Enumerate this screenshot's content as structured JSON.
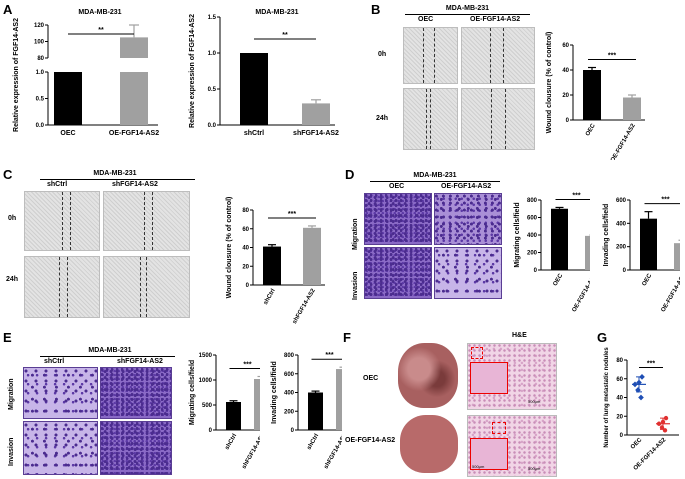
{
  "panels": {
    "A": {
      "label": "A",
      "title": "MDA-MB-231"
    },
    "B": {
      "label": "B",
      "title": "MDA-MB-231",
      "cols": [
        "OEC",
        "OE-FGF14-AS2"
      ],
      "rows": [
        "0h",
        "24h"
      ]
    },
    "C": {
      "label": "C",
      "title": "MDA-MB-231",
      "cols": [
        "shCtrl",
        "shFGF14-AS2"
      ],
      "rows": [
        "0h",
        "24h"
      ]
    },
    "D": {
      "label": "D",
      "title": "MDA-MB-231",
      "cols": [
        "OEC",
        "OE-FGF14-AS2"
      ],
      "rows": [
        "Migration",
        "Invasion"
      ]
    },
    "E": {
      "label": "E",
      "title": "MDA-MB-231",
      "cols": [
        "shCtrl",
        "shFGF14-AS2"
      ],
      "rows": [
        "Migration",
        "Invasion"
      ]
    },
    "F": {
      "label": "F",
      "he_title": "H&E",
      "rows": [
        "OEC",
        "OE-FGF14-AS2"
      ],
      "scale_bar": "500μm"
    },
    "G": {
      "label": "G"
    }
  },
  "chart_data": [
    {
      "id": "A1",
      "type": "bar",
      "title": "MDA-MB-231",
      "categories": [
        "OEC",
        "OE-FGF14-AS2"
      ],
      "values": [
        1,
        105
      ],
      "errors": [
        0,
        15
      ],
      "ylabel": "Relative expression of FGF14-AS2",
      "yticks_lower": [
        "0.0",
        "0.5",
        "1.0"
      ],
      "yticks_upper": [
        "80",
        "100",
        "120"
      ],
      "sig": "**",
      "colors": [
        "#000000",
        "#a0a0a0"
      ]
    },
    {
      "id": "A2",
      "type": "bar",
      "title": "MDA-MB-231",
      "categories": [
        "shCtrl",
        "shFGF14-AS2"
      ],
      "values": [
        1.0,
        0.3
      ],
      "errors": [
        0,
        0.05
      ],
      "ylabel": "Relative expression of FGF14-AS2",
      "ylim": [
        0,
        1.5
      ],
      "yticks": [
        "0.0",
        "0.5",
        "1.0",
        "1.5"
      ],
      "sig": "**",
      "colors": [
        "#000000",
        "#a0a0a0"
      ]
    },
    {
      "id": "B",
      "type": "bar",
      "categories": [
        "OEC",
        "OE-FGF14-AS2"
      ],
      "values": [
        40,
        18
      ],
      "errors": [
        2,
        2
      ],
      "ylabel": "Wound clousure (% of control)",
      "ylim": [
        0,
        60
      ],
      "yticks": [
        "0",
        "20",
        "40",
        "60"
      ],
      "sig": "***",
      "colors": [
        "#000000",
        "#a0a0a0"
      ]
    },
    {
      "id": "C",
      "type": "bar",
      "categories": [
        "shCtrl",
        "shFGF14-AS2"
      ],
      "values": [
        41,
        61
      ],
      "errors": [
        2,
        2
      ],
      "ylabel": "Wound clousure (% of control)",
      "ylim": [
        0,
        80
      ],
      "yticks": [
        "0",
        "20",
        "40",
        "60",
        "80"
      ],
      "sig": "***",
      "colors": [
        "#000000",
        "#a0a0a0"
      ]
    },
    {
      "id": "D1",
      "type": "bar",
      "categories": [
        "OEC",
        "OE-FGF14-AS2"
      ],
      "values": [
        700,
        390
      ],
      "errors": [
        15,
        10
      ],
      "ylabel": "Migrating cells/field",
      "ylim": [
        0,
        800
      ],
      "yticks": [
        "0",
        "200",
        "400",
        "600",
        "800"
      ],
      "sig": "***",
      "colors": [
        "#000000",
        "#a0a0a0"
      ]
    },
    {
      "id": "D2",
      "type": "bar",
      "categories": [
        "OEC",
        "OE-FGF14-AS2"
      ],
      "values": [
        440,
        230
      ],
      "errors": [
        60,
        25
      ],
      "ylabel": "Invading cells/field",
      "ylim": [
        0,
        600
      ],
      "yticks": [
        "0",
        "200",
        "400",
        "600"
      ],
      "sig": "***",
      "colors": [
        "#000000",
        "#a0a0a0"
      ]
    },
    {
      "id": "E1",
      "type": "bar",
      "categories": [
        "shCtrl",
        "shFGF14-AS2"
      ],
      "values": [
        560,
        1020
      ],
      "errors": [
        25,
        50
      ],
      "ylabel": "Migrating cells/field",
      "ylim": [
        0,
        1500
      ],
      "yticks": [
        "0",
        "500",
        "1000",
        "1500"
      ],
      "sig": "***",
      "colors": [
        "#000000",
        "#a0a0a0"
      ]
    },
    {
      "id": "E2",
      "type": "bar",
      "categories": [
        "shCtrl",
        "shFGF14-AS2"
      ],
      "values": [
        400,
        650
      ],
      "errors": [
        15,
        20
      ],
      "ylabel": "Invading cells/field",
      "ylim": [
        0,
        800
      ],
      "yticks": [
        "0",
        "200",
        "400",
        "600",
        "800"
      ],
      "sig": "***",
      "colors": [
        "#000000",
        "#a0a0a0"
      ]
    },
    {
      "id": "G",
      "type": "scatter",
      "categories": [
        "OEC",
        "OE-FGF14-AS2"
      ],
      "series": [
        {
          "values": [
            54,
            40,
            48,
            62,
            56
          ]
        },
        {
          "values": [
            12,
            5,
            8,
            18,
            14
          ]
        }
      ],
      "means": [
        54,
        12
      ],
      "sds": [
        8,
        6
      ],
      "ylabel": "Number of lung metastatic nodules",
      "ylim": [
        0,
        80
      ],
      "yticks": [
        "0",
        "20",
        "40",
        "60",
        "80"
      ],
      "sig": "***",
      "colors": [
        "#1f4fb5",
        "#e03030"
      ]
    }
  ]
}
